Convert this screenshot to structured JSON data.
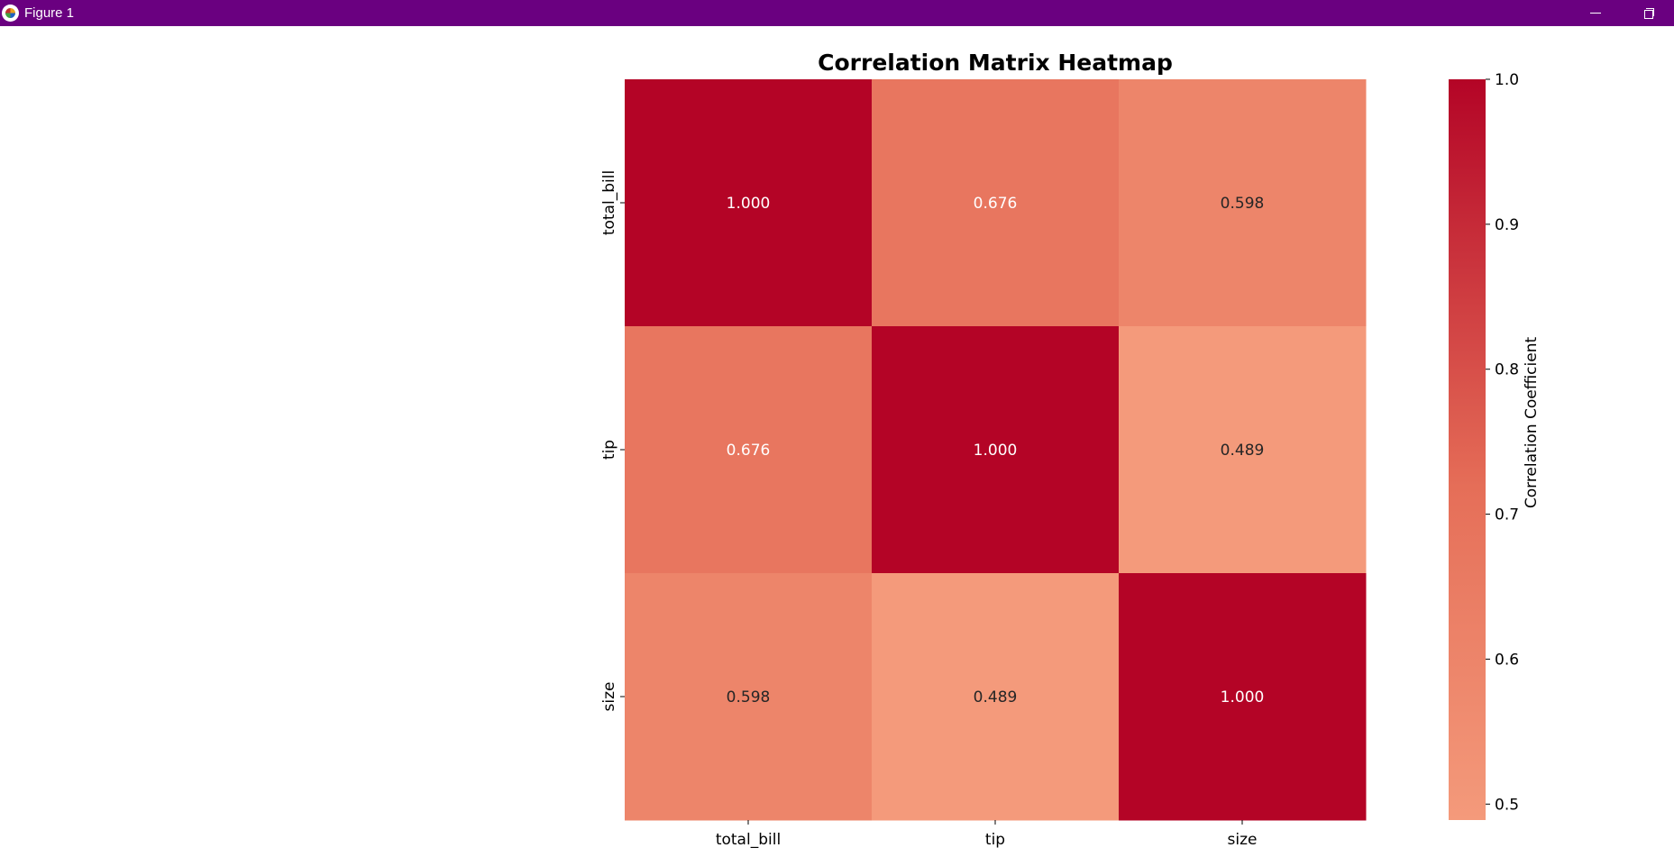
{
  "window": {
    "title": "Figure 1",
    "icon": "matplotlib-icon",
    "titlebar_color": "#6a0080",
    "controls": [
      "minimize-icon",
      "restore-icon"
    ]
  },
  "chart_data": {
    "type": "heatmap",
    "title": "Correlation Matrix Heatmap",
    "xlabel": "",
    "ylabel": "",
    "x_categories": [
      "total_bill",
      "tip",
      "size"
    ],
    "y_categories": [
      "total_bill",
      "tip",
      "size"
    ],
    "values": [
      [
        1.0,
        0.676,
        0.598
      ],
      [
        0.676,
        1.0,
        0.489
      ],
      [
        0.598,
        0.489,
        1.0
      ]
    ],
    "value_format": "3 decimals",
    "colorbar": {
      "label": "Correlation Coefficient",
      "range": [
        0.489,
        1.0
      ],
      "ticks": [
        0.5,
        0.6,
        0.7,
        0.8,
        0.9,
        1.0
      ],
      "tick_labels": [
        "0.5",
        "0.6",
        "0.7",
        "0.8",
        "0.9",
        "1.0"
      ],
      "colormap": "coolwarm (upper half)",
      "low_color": "#f49a7b",
      "high_color": "#b40426"
    },
    "grid": false
  }
}
